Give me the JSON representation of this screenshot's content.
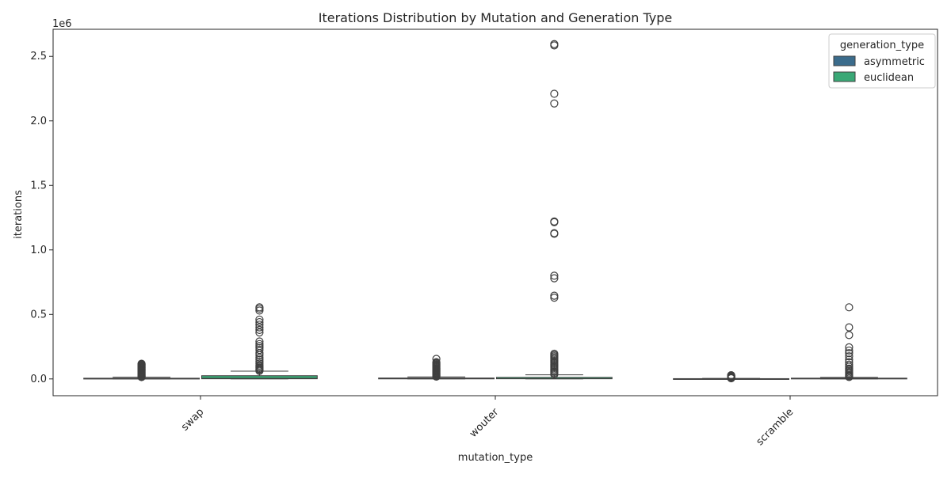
{
  "chart_data": {
    "type": "box",
    "title": "Iterations Distribution by Mutation and Generation Type",
    "xlabel": "mutation_type",
    "ylabel": "iterations",
    "y_offset_label": "1e6",
    "ylim": [
      -130000,
      2710000
    ],
    "y_ticks": [
      0,
      500000,
      1000000,
      1500000,
      2000000,
      2500000
    ],
    "y_tick_labels": [
      "0.0",
      "0.5",
      "1.0",
      "1.5",
      "2.0",
      "2.5"
    ],
    "categories": [
      "swap",
      "wouter",
      "scramble"
    ],
    "legend": {
      "title": "generation_type",
      "position": "upper right"
    },
    "grid": false,
    "series": [
      {
        "name": "asymmetric",
        "color": "#3b6c8c",
        "boxes": [
          {
            "q1": 300,
            "median": 1500,
            "q3": 5500,
            "whisker_low": 0,
            "whisker_high": 13000,
            "outliers": [
              14000,
              17000,
              20000,
              24000,
              28000,
              33000,
              38000,
              43000,
              48000,
              53000,
              58000,
              63000,
              68000,
              73000,
              78000,
              83000,
              88000,
              93000,
              98000,
              103000,
              108000,
              113000,
              118000
            ]
          },
          {
            "q1": 300,
            "median": 1500,
            "q3": 7000,
            "whisker_low": 0,
            "whisker_high": 16000,
            "outliers": [
              18000,
              22000,
              27000,
              32000,
              37000,
              42000,
              47000,
              52000,
              57000,
              62000,
              67000,
              72000,
              77000,
              82000,
              88000,
              94000,
              100000,
              106000,
              112000,
              118000,
              124000,
              130000,
              155000
            ]
          },
          {
            "q1": 200,
            "median": 800,
            "q3": 2200,
            "whisker_low": 0,
            "whisker_high": 4500,
            "outliers": [
              5000,
              7000,
              9000,
              11000,
              13000,
              15000,
              17000,
              19000,
              21000,
              23000,
              25000,
              27000,
              29000
            ]
          }
        ]
      },
      {
        "name": "euclidean",
        "color": "#3aa876",
        "boxes": [
          {
            "q1": 1000,
            "median": 5000,
            "q3": 25000,
            "whisker_low": 0,
            "whisker_high": 60000,
            "outliers": [
              62000,
              70000,
              78000,
              86000,
              95000,
              105000,
              120000,
              135000,
              150000,
              165000,
              185000,
              200000,
              225000,
              240000,
              255000,
              270000,
              290000,
              360000,
              380000,
              400000,
              420000,
              440000,
              460000,
              530000,
              545000,
              555000
            ]
          },
          {
            "q1": 1000,
            "median": 3000,
            "q3": 12000,
            "whisker_low": 0,
            "whisker_high": 32000,
            "outliers": [
              35000,
              45000,
              55000,
              65000,
              75000,
              85000,
              95000,
              105000,
              115000,
              125000,
              135000,
              145000,
              155000,
              165000,
              175000,
              185000,
              195000,
              630000,
              645000,
              780000,
              800000,
              1125000,
              1130000,
              1215000,
              1220000,
              2135000,
              2210000,
              2585000,
              2595000
            ]
          },
          {
            "q1": 500,
            "median": 2000,
            "q3": 6000,
            "whisker_low": 0,
            "whisker_high": 12000,
            "outliers": [
              15000,
              22000,
              30000,
              40000,
              50000,
              60000,
              70000,
              80000,
              95000,
              110000,
              130000,
              150000,
              175000,
              200000,
              220000,
              245000,
              340000,
              400000,
              555000
            ]
          }
        ]
      }
    ]
  }
}
